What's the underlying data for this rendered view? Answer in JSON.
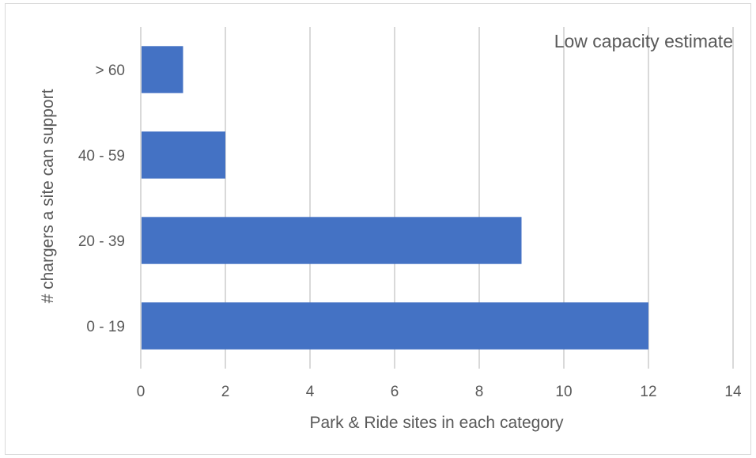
{
  "chart_data": {
    "type": "bar",
    "orientation": "horizontal",
    "title": "Low capacity estimate",
    "xlabel": "Park & Ride sites in each category",
    "ylabel": "# chargers a site can support",
    "categories": [
      "0 - 19",
      "20 - 39",
      "40 - 59",
      "> 60"
    ],
    "values": [
      12,
      9,
      2,
      1
    ],
    "xlim": [
      0,
      14
    ],
    "xticks": [
      "0",
      "2",
      "4",
      "6",
      "8",
      "10",
      "12",
      "14"
    ],
    "grid": "vertical",
    "legend": "none",
    "bar_color": "#4472C4",
    "grid_color": "#d9d9d9"
  }
}
